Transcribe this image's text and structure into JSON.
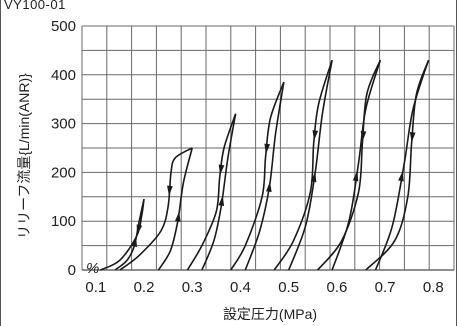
{
  "header": {
    "label": "VY100-01"
  },
  "chart_data": {
    "type": "line",
    "title": "",
    "xlabel": "設定圧力(MPa)",
    "ylabel": "リリーフ流量{L/min(ANR)}",
    "x_ticks": [
      "0.1",
      "0.2",
      "0.3",
      "0.4",
      "0.5",
      "0.6",
      "0.7",
      "0.8"
    ],
    "y_ticks": [
      "0",
      "100",
      "200",
      "300",
      "400",
      "500"
    ],
    "xlim": [
      0.0714,
      0.8429
    ],
    "ylim": [
      0,
      500
    ],
    "axis_break_symbol": "%",
    "grid": true,
    "series": [
      {
        "up": [
          [
            0.14,
            0
          ],
          [
            0.165,
            20
          ],
          [
            0.18,
            50
          ],
          [
            0.19,
            100
          ],
          [
            0.2,
            145
          ]
        ],
        "down": [
          [
            0.2,
            145
          ],
          [
            0.195,
            110
          ],
          [
            0.185,
            70
          ],
          [
            0.15,
            20
          ],
          [
            0.11,
            0
          ]
        ]
      },
      {
        "up": [
          [
            0.23,
            0
          ],
          [
            0.255,
            40
          ],
          [
            0.27,
            100
          ],
          [
            0.282,
            180
          ],
          [
            0.3,
            250
          ]
        ],
        "down": [
          [
            0.3,
            250
          ],
          [
            0.265,
            230
          ],
          [
            0.256,
            200
          ],
          [
            0.25,
            130
          ],
          [
            0.235,
            80
          ],
          [
            0.19,
            30
          ],
          [
            0.15,
            0
          ]
        ]
      },
      {
        "up": [
          [
            0.32,
            0
          ],
          [
            0.345,
            60
          ],
          [
            0.36,
            130
          ],
          [
            0.374,
            230
          ],
          [
            0.39,
            320
          ]
        ],
        "down": [
          [
            0.39,
            320
          ],
          [
            0.366,
            250
          ],
          [
            0.357,
            190
          ],
          [
            0.35,
            120
          ],
          [
            0.32,
            50
          ],
          [
            0.29,
            0
          ]
        ]
      },
      {
        "up": [
          [
            0.41,
            0
          ],
          [
            0.44,
            80
          ],
          [
            0.46,
            170
          ],
          [
            0.473,
            280
          ],
          [
            0.49,
            385
          ]
        ],
        "down": [
          [
            0.49,
            385
          ],
          [
            0.462,
            310
          ],
          [
            0.452,
            230
          ],
          [
            0.445,
            150
          ],
          [
            0.41,
            50
          ],
          [
            0.38,
            0
          ]
        ]
      },
      {
        "up": [
          [
            0.5,
            0
          ],
          [
            0.535,
            90
          ],
          [
            0.555,
            200
          ],
          [
            0.57,
            320
          ],
          [
            0.59,
            430
          ]
        ],
        "down": [
          [
            0.59,
            430
          ],
          [
            0.562,
            340
          ],
          [
            0.552,
            260
          ],
          [
            0.545,
            160
          ],
          [
            0.51,
            60
          ],
          [
            0.47,
            0
          ]
        ]
      },
      {
        "up": [
          [
            0.59,
            0
          ],
          [
            0.625,
            100
          ],
          [
            0.645,
            220
          ],
          [
            0.66,
            330
          ],
          [
            0.69,
            430
          ]
        ],
        "down": [
          [
            0.69,
            430
          ],
          [
            0.662,
            360
          ],
          [
            0.653,
            260
          ],
          [
            0.645,
            160
          ],
          [
            0.61,
            60
          ],
          [
            0.56,
            0
          ]
        ]
      },
      {
        "up": [
          [
            0.68,
            0
          ],
          [
            0.715,
            90
          ],
          [
            0.74,
            220
          ],
          [
            0.758,
            330
          ],
          [
            0.79,
            430
          ]
        ],
        "down": [
          [
            0.79,
            430
          ],
          [
            0.765,
            360
          ],
          [
            0.755,
            260
          ],
          [
            0.747,
            150
          ],
          [
            0.72,
            60
          ],
          [
            0.66,
            0
          ]
        ]
      }
    ]
  }
}
